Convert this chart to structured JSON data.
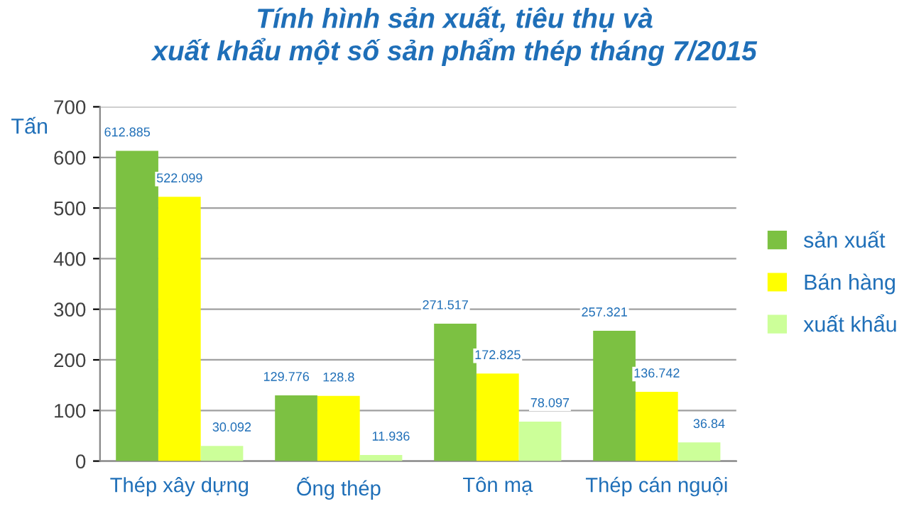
{
  "chart_data": {
    "type": "bar",
    "title": "Tính hình sản xuất, tiêu thụ và\nxuất khẩu một số sản phẩm thép tháng 7/2015",
    "ylabel": "Tấn",
    "categories": [
      "Thép xây dựng",
      "Ống thép",
      "Tôn mạ",
      "Thép cán nguội"
    ],
    "series": [
      {
        "name": "sản xuất",
        "color": "#7cc142",
        "values": [
          612.885,
          129.776,
          271.517,
          257.321
        ]
      },
      {
        "name": "Bán hàng",
        "color": "#ffff00",
        "values": [
          522.099,
          128.8,
          172.825,
          136.742
        ]
      },
      {
        "name": "xuất khẩu",
        "color": "#ccff99",
        "values": [
          30.092,
          11.936,
          78.097,
          36.84
        ]
      }
    ],
    "ylim": [
      0,
      700
    ],
    "yticks": [
      0,
      100,
      200,
      300,
      400,
      500,
      600,
      700
    ],
    "grid": "y",
    "legend": "right",
    "data_labels": true
  }
}
